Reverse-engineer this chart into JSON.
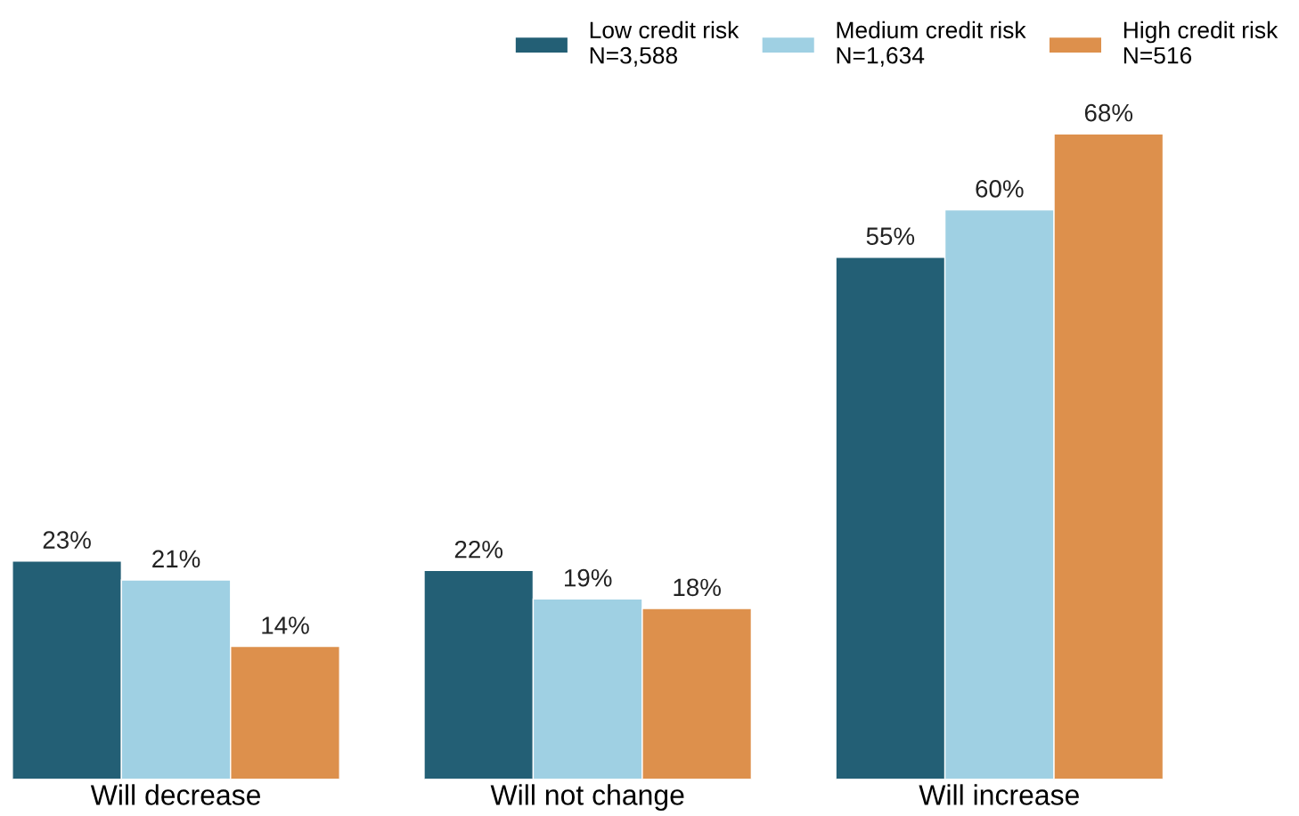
{
  "chart_data": {
    "type": "bar",
    "categories": [
      "Will decrease",
      "Will not change",
      "Will increase"
    ],
    "series": [
      {
        "name": "Low credit risk\nN=3,588",
        "color": "#235f75",
        "values": [
          23,
          22,
          55
        ],
        "value_labels": [
          "23%",
          "22%",
          "55%"
        ]
      },
      {
        "name": "Medium credit risk\nN=1,634",
        "color": "#9fd0e3",
        "values": [
          21,
          19,
          60
        ],
        "value_labels": [
          "21%",
          "19%",
          "60%"
        ]
      },
      {
        "name": "High credit risk\nN=516",
        "color": "#dd904c",
        "values": [
          14,
          18,
          68
        ],
        "value_labels": [
          "14%",
          "18%",
          "68%"
        ]
      }
    ],
    "grid": false,
    "legend": "top right"
  }
}
